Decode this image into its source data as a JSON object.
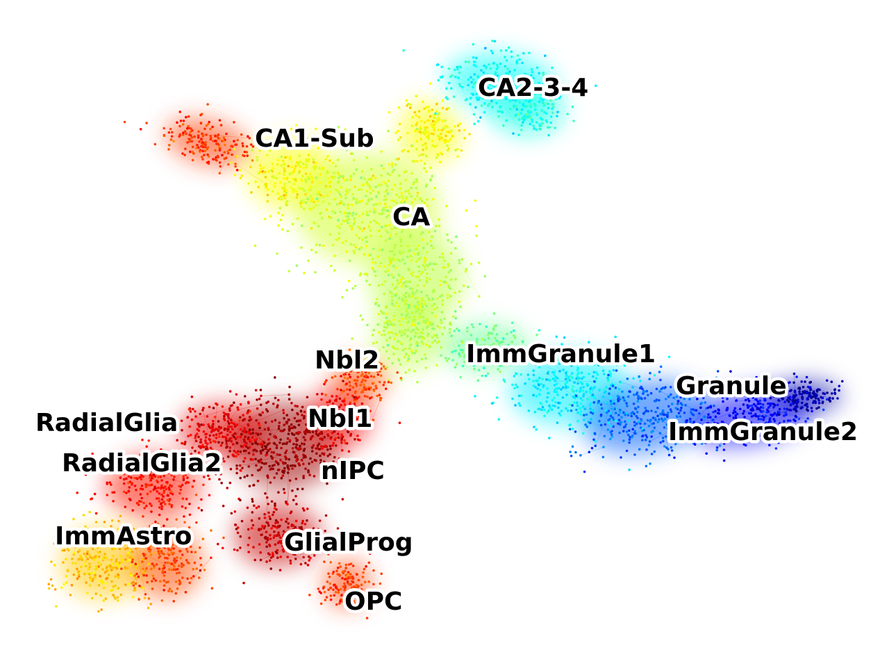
{
  "figure": {
    "colormap": "jet",
    "background": "#ffffff"
  },
  "clusters": [
    {
      "label": "CA2-3-4",
      "color": "#22e0d6"
    },
    {
      "label": "CA1-Sub",
      "color": "#ffb000"
    },
    {
      "label": "CA",
      "color": "#b8ee3a"
    },
    {
      "label": "ImmGranule1",
      "color": "#34f0b4"
    },
    {
      "label": "Granule",
      "color": "#00009a"
    },
    {
      "label": "ImmGranule2",
      "color": "#0a3cff"
    },
    {
      "label": "Nbl2",
      "color": "#ffd000"
    },
    {
      "label": "Nbl1",
      "color": "#ff5a00"
    },
    {
      "label": "RadialGlia",
      "color": "#ff3a00"
    },
    {
      "label": "RadialGlia2",
      "color": "#ff6000"
    },
    {
      "label": "nIPC",
      "color": "#9c0000"
    },
    {
      "label": "ImmAstro",
      "color": "#ffe600"
    },
    {
      "label": "GlialProg",
      "color": "#cc0000"
    },
    {
      "label": "OPC",
      "color": "#ff7a00"
    }
  ]
}
